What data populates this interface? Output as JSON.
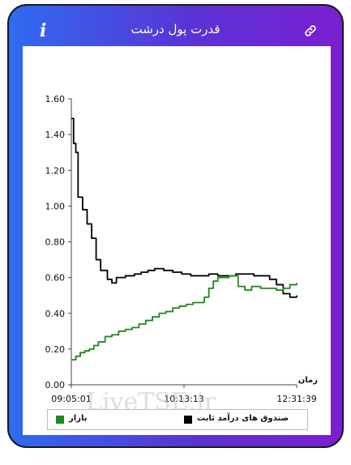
{
  "header": {
    "title": "قدرت پول درشت",
    "info_icon": "i"
  },
  "chart_data": {
    "type": "line",
    "x_tick_labels": [
      "09:05:01",
      "10:13:13",
      "12:31:39"
    ],
    "xlabel": "زمان",
    "ylabel": "",
    "ylim": [
      0,
      1.6
    ],
    "y_ticks": [
      "0.00",
      "0.20",
      "0.40",
      "0.60",
      "0.80",
      "1.00",
      "1.20",
      "1.40",
      "1.60"
    ],
    "grid": false,
    "legend_position": "bottom",
    "series": [
      {
        "name": "صندوق های درآمد ثابت",
        "color": "#000000",
        "points": [
          [
            0,
            1.49
          ],
          [
            0.01,
            1.35
          ],
          [
            0.02,
            1.3
          ],
          [
            0.03,
            1.05
          ],
          [
            0.05,
            0.98
          ],
          [
            0.07,
            0.9
          ],
          [
            0.09,
            0.82
          ],
          [
            0.11,
            0.7
          ],
          [
            0.13,
            0.64
          ],
          [
            0.16,
            0.59
          ],
          [
            0.18,
            0.57
          ],
          [
            0.2,
            0.6
          ],
          [
            0.24,
            0.61
          ],
          [
            0.28,
            0.62
          ],
          [
            0.31,
            0.63
          ],
          [
            0.34,
            0.64
          ],
          [
            0.37,
            0.65
          ],
          [
            0.41,
            0.64
          ],
          [
            0.45,
            0.63
          ],
          [
            0.49,
            0.62
          ],
          [
            0.53,
            0.61
          ],
          [
            0.57,
            0.61
          ],
          [
            0.61,
            0.62
          ],
          [
            0.65,
            0.61
          ],
          [
            0.69,
            0.61
          ],
          [
            0.73,
            0.62
          ],
          [
            0.77,
            0.62
          ],
          [
            0.81,
            0.61
          ],
          [
            0.85,
            0.61
          ],
          [
            0.88,
            0.59
          ],
          [
            0.91,
            0.56
          ],
          [
            0.94,
            0.51
          ],
          [
            0.97,
            0.49
          ],
          [
            1.0,
            0.5
          ]
        ]
      },
      {
        "name": "بازار",
        "color": "#1a8a1a",
        "points": [
          [
            0,
            0.14
          ],
          [
            0.02,
            0.16
          ],
          [
            0.04,
            0.18
          ],
          [
            0.06,
            0.19
          ],
          [
            0.08,
            0.2
          ],
          [
            0.1,
            0.22
          ],
          [
            0.12,
            0.24
          ],
          [
            0.15,
            0.27
          ],
          [
            0.18,
            0.28
          ],
          [
            0.21,
            0.3
          ],
          [
            0.24,
            0.31
          ],
          [
            0.27,
            0.32
          ],
          [
            0.3,
            0.34
          ],
          [
            0.33,
            0.36
          ],
          [
            0.36,
            0.38
          ],
          [
            0.39,
            0.4
          ],
          [
            0.42,
            0.41
          ],
          [
            0.45,
            0.43
          ],
          [
            0.48,
            0.44
          ],
          [
            0.51,
            0.45
          ],
          [
            0.54,
            0.46
          ],
          [
            0.57,
            0.46
          ],
          [
            0.59,
            0.49
          ],
          [
            0.61,
            0.54
          ],
          [
            0.63,
            0.58
          ],
          [
            0.65,
            0.6
          ],
          [
            0.67,
            0.6
          ],
          [
            0.7,
            0.61
          ],
          [
            0.73,
            0.61
          ],
          [
            0.74,
            0.55
          ],
          [
            0.77,
            0.53
          ],
          [
            0.8,
            0.55
          ],
          [
            0.84,
            0.54
          ],
          [
            0.88,
            0.54
          ],
          [
            0.91,
            0.53
          ],
          [
            0.94,
            0.54
          ],
          [
            0.97,
            0.56
          ],
          [
            1.0,
            0.57
          ]
        ]
      }
    ]
  },
  "watermark": "LiveTSE.ir",
  "legend": {
    "series_1": "صندوق های درآمد ثابت",
    "series_2": "بازار"
  }
}
